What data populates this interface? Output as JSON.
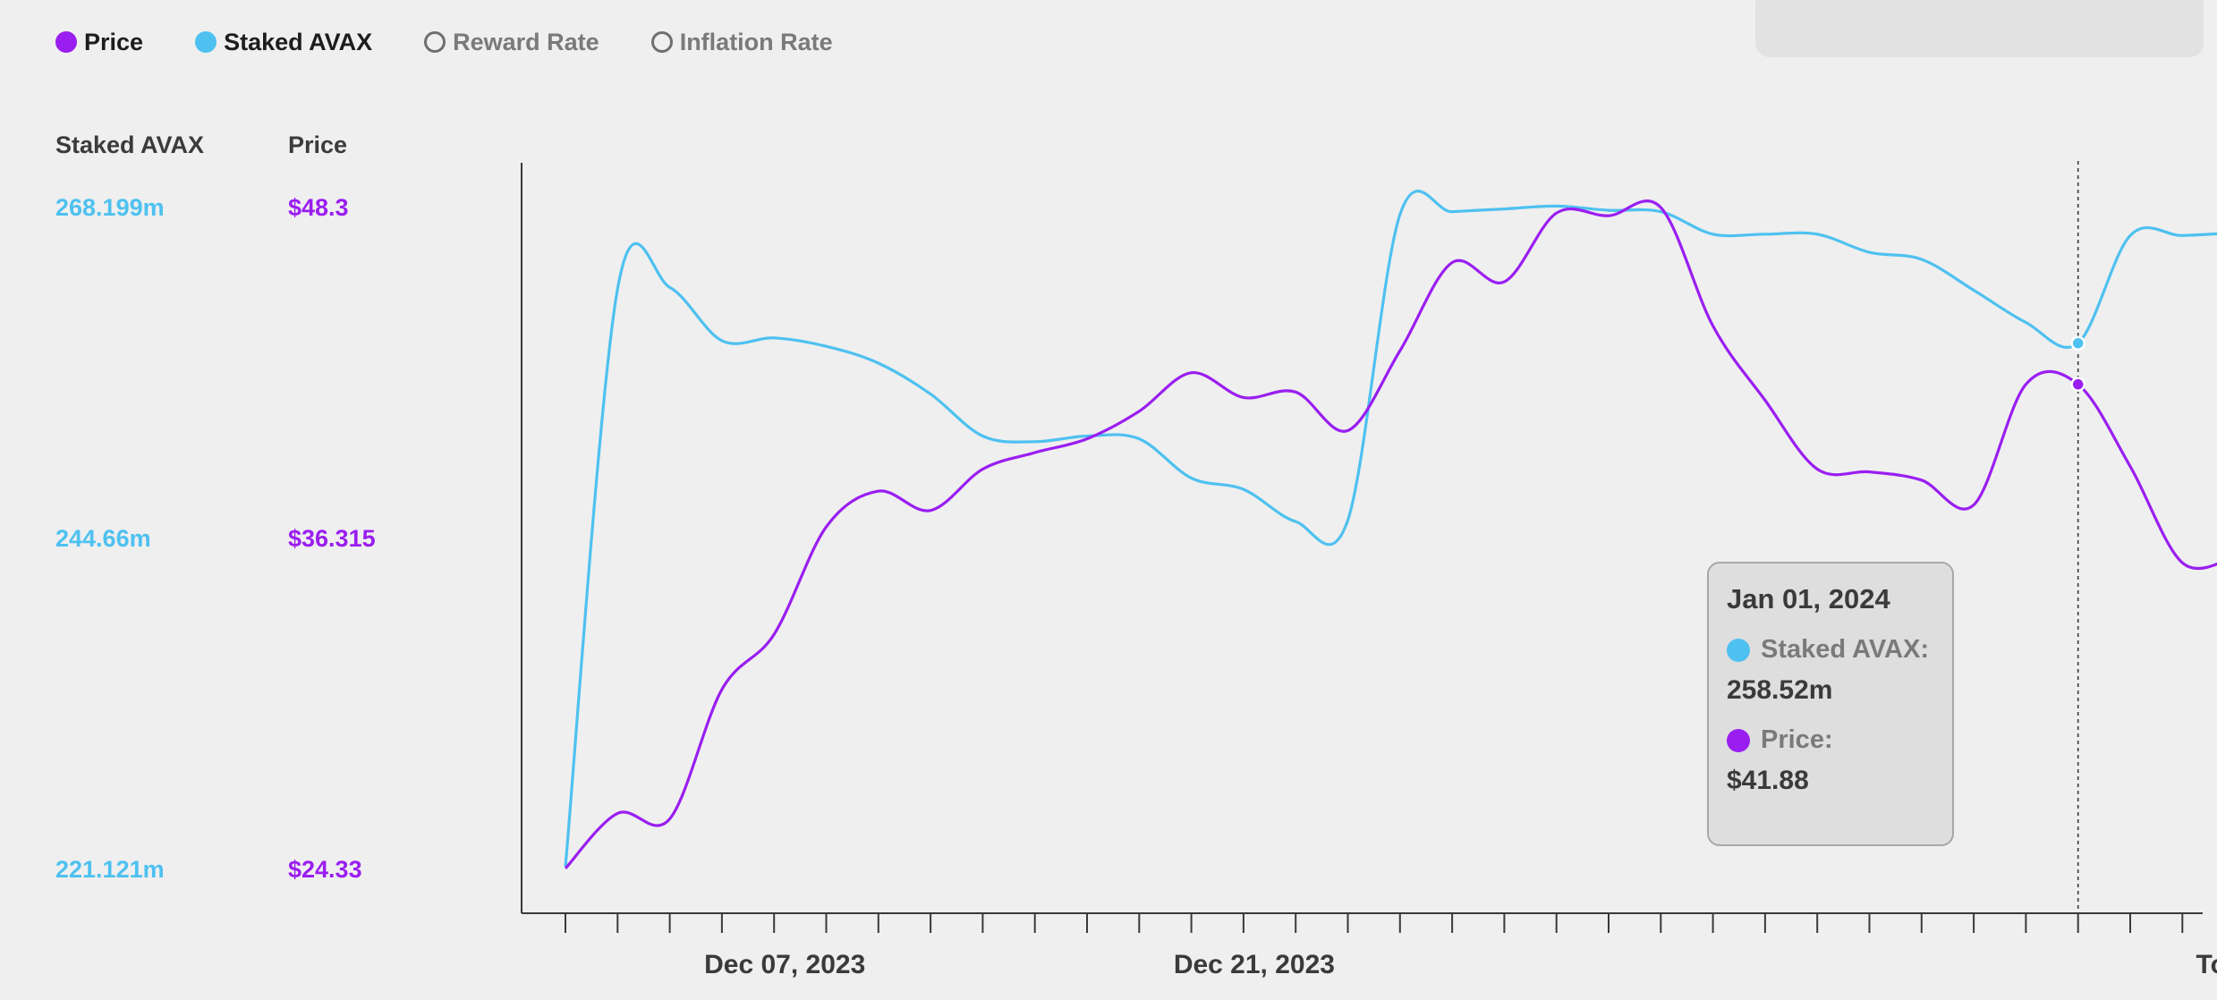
{
  "legend": {
    "price": "Price",
    "staked": "Staked AVAX",
    "reward": "Reward Rate",
    "inflation": "Inflation Rate"
  },
  "axes": {
    "left_header": "Staked AVAX",
    "right_header": "Price",
    "staked_ticks": [
      "268.199m",
      "244.66m",
      "221.121m"
    ],
    "price_ticks": [
      "$48.3",
      "$36.315",
      "$24.33"
    ]
  },
  "tooltip": {
    "date": "Jan 01, 2024",
    "staked_label": "Staked AVAX:",
    "staked_value": "258.52m",
    "price_label": "Price:",
    "price_value": "$41.88"
  },
  "colors": {
    "price": "#9a1ef0",
    "staked": "#4ec1f0",
    "background": "#efefef"
  },
  "chart_data": {
    "type": "line",
    "x_tick_labels": [
      "Dec 07, 2023",
      "Dec 21, 2023",
      "Today"
    ],
    "x": [
      "Dec 03, 2023",
      "Dec 04, 2023",
      "Dec 05, 2023",
      "Dec 06, 2023",
      "Dec 07, 2023",
      "Dec 08, 2023",
      "Dec 09, 2023",
      "Dec 10, 2023",
      "Dec 11, 2023",
      "Dec 12, 2023",
      "Dec 13, 2023",
      "Dec 14, 2023",
      "Dec 15, 2023",
      "Dec 16, 2023",
      "Dec 17, 2023",
      "Dec 18, 2023",
      "Dec 19, 2023",
      "Dec 20, 2023",
      "Dec 21, 2023",
      "Dec 22, 2023",
      "Dec 23, 2023",
      "Dec 24, 2023",
      "Dec 25, 2023",
      "Dec 26, 2023",
      "Dec 27, 2023",
      "Dec 28, 2023",
      "Dec 29, 2023",
      "Dec 30, 2023",
      "Dec 31, 2023",
      "Jan 01, 2024",
      "Jan 02, 2024",
      "Jan 03, 2024",
      "Jan 04, 2024"
    ],
    "series": [
      {
        "name": "Staked AVAX",
        "unit": "m",
        "ylim": [
          221.121,
          268.199
        ],
        "values": [
          221.2,
          262.4,
          262.5,
          258.7,
          258.9,
          258.3,
          257.1,
          254.9,
          251.9,
          251.5,
          251.9,
          251.7,
          248.9,
          248.1,
          245.8,
          245.9,
          267.7,
          267.9,
          268.1,
          268.3,
          268.0,
          267.9,
          266.3,
          266.3,
          266.3,
          265.0,
          264.5,
          262.3,
          260.0,
          258.52,
          266.2,
          266.2,
          266.4
        ]
      },
      {
        "name": "Price",
        "unit": "$",
        "ylim": [
          24.33,
          48.3
        ],
        "values": [
          24.3,
          26.3,
          26.1,
          30.8,
          32.8,
          36.7,
          38.0,
          37.3,
          38.8,
          39.4,
          39.9,
          40.9,
          42.3,
          41.4,
          41.6,
          40.2,
          43.1,
          46.3,
          45.6,
          48.1,
          48.0,
          48.3,
          44.0,
          41.3,
          38.8,
          38.7,
          38.4,
          37.5,
          41.88,
          41.88,
          38.9,
          35.4,
          35.6
        ]
      }
    ],
    "hover_date": "Jan 01, 2024",
    "grid": false,
    "legend_position": "top-left"
  }
}
